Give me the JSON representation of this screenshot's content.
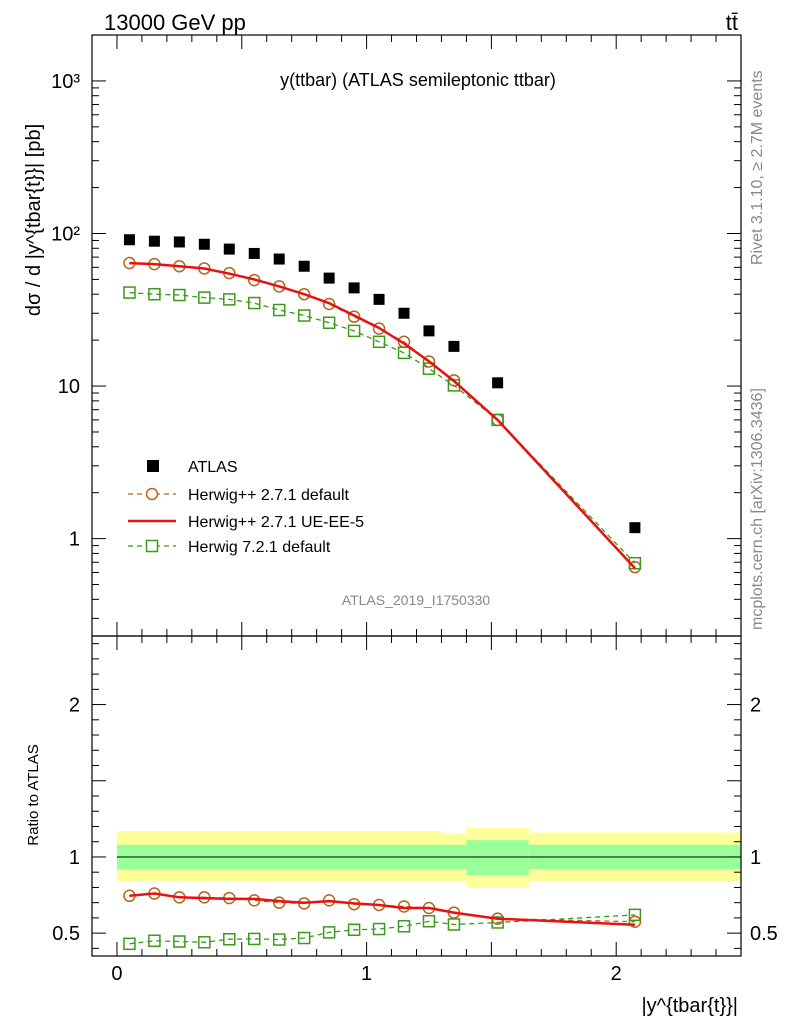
{
  "header": {
    "left": "13000 GeV pp",
    "right": "tt̄"
  },
  "side_text": {
    "rivet": "Rivet 3.1.10, ≥ 2.7M events",
    "mcplots": "mcplots.cern.ch [arXiv:1306.3436]"
  },
  "colors": {
    "data": "#000000",
    "herwigpp_default": "#b5651d",
    "herwigpp_ueee5": "#e8110f",
    "herwig721": "#3a9a1a",
    "band_inner": "#99ff99",
    "band_outer": "#ffff99"
  },
  "chart_data": [
    {
      "type": "scatter",
      "title": "y(ttbar) (ATLAS semileptonic ttbar)",
      "watermark": "ATLAS_2019_I1750330",
      "ylabel": "dσ / d |y^{tbar{t}}| [pb]",
      "yscale": "log",
      "ylim": [
        0.23,
        2000
      ],
      "xlim": [
        -0.1,
        2.5
      ],
      "yticks": [
        "1",
        "10",
        "10²",
        "10³"
      ],
      "x": [
        0.05,
        0.15,
        0.25,
        0.35,
        0.45,
        0.55,
        0.65,
        0.75,
        0.85,
        0.95,
        1.05,
        1.15,
        1.25,
        1.35,
        1.525,
        2.075
      ],
      "series": [
        {
          "name": "ATLAS",
          "values": [
            91,
            89,
            88,
            85,
            79,
            74,
            68,
            61,
            51,
            44,
            37,
            30,
            23,
            18.2,
            10.5,
            1.18
          ]
        },
        {
          "name": "Herwig++ 2.7.1 default",
          "values": [
            64,
            63,
            61,
            59,
            55,
            49.5,
            45,
            40,
            34.5,
            28.5,
            23.8,
            19.5,
            14.5,
            10.9,
            6.0,
            0.65
          ]
        },
        {
          "name": "Herwig++ 2.7.1 UE-EE-5",
          "values": [
            64,
            63,
            61,
            59,
            54.5,
            50,
            45,
            40,
            35,
            29,
            24,
            19,
            14.5,
            10.8,
            6.0,
            0.64
          ]
        },
        {
          "name": "Herwig 7.2.1 default",
          "values": [
            41,
            40,
            39.5,
            38,
            37,
            35,
            31.5,
            29,
            26,
            23,
            19.5,
            16.5,
            13,
            10.1,
            6.0,
            0.69
          ]
        }
      ]
    },
    {
      "type": "scatter",
      "ylabel": "Ratio to ATLAS",
      "xlabel": "|y^{tbar{t}}|",
      "ylim": [
        0.35,
        2.45
      ],
      "xlim": [
        -0.1,
        2.5
      ],
      "yticks": [
        "0.5",
        "1",
        "2"
      ],
      "xticks": [
        "0",
        "1",
        "2"
      ],
      "x": [
        0.05,
        0.15,
        0.25,
        0.35,
        0.45,
        0.55,
        0.65,
        0.75,
        0.85,
        0.95,
        1.05,
        1.15,
        1.25,
        1.35,
        1.525,
        2.075
      ],
      "bands": {
        "bins": [
          [
            0.0,
            1.3
          ],
          [
            1.3,
            1.4
          ],
          [
            1.4,
            1.65
          ],
          [
            1.65,
            2.5
          ]
        ],
        "outer": [
          [
            0.84,
            1.17
          ],
          [
            0.84,
            1.15
          ],
          [
            0.8,
            1.19
          ],
          [
            0.84,
            1.16
          ]
        ],
        "inner": [
          [
            0.92,
            1.08
          ],
          [
            0.92,
            1.08
          ],
          [
            0.88,
            1.11
          ],
          [
            0.92,
            1.08
          ]
        ]
      },
      "series": [
        {
          "name": "Herwig++ 2.7.1 default",
          "values": [
            0.745,
            0.76,
            0.735,
            0.735,
            0.73,
            0.715,
            0.7,
            0.695,
            0.715,
            0.69,
            0.685,
            0.675,
            0.665,
            0.635,
            0.595,
            0.575
          ]
        },
        {
          "name": "Herwig++ 2.7.1 UE-EE-5",
          "values": [
            0.745,
            0.76,
            0.735,
            0.73,
            0.725,
            0.725,
            0.71,
            0.7,
            0.71,
            0.695,
            0.685,
            0.665,
            0.665,
            0.635,
            0.595,
            0.555
          ]
        },
        {
          "name": "Herwig 7.2.1 default",
          "values": [
            0.43,
            0.45,
            0.445,
            0.44,
            0.46,
            0.462,
            0.458,
            0.468,
            0.505,
            0.522,
            0.527,
            0.545,
            0.578,
            0.557,
            0.57,
            0.62
          ]
        }
      ]
    }
  ]
}
